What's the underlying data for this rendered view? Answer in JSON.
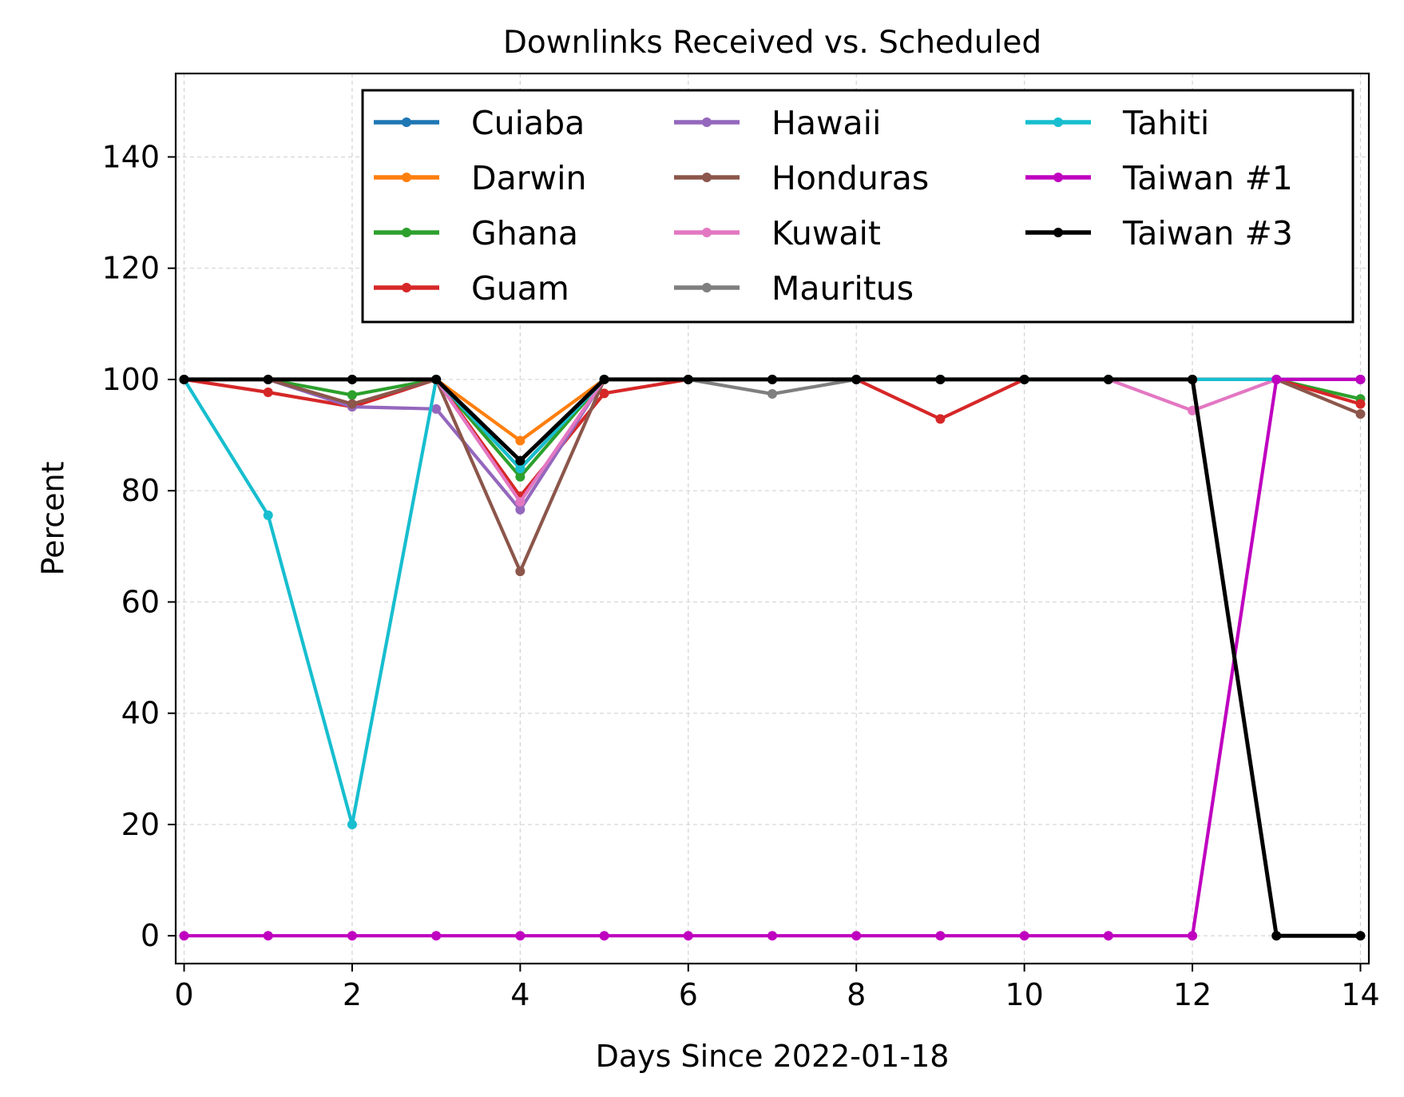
{
  "chart_data": {
    "type": "line",
    "title": "Downlinks Received vs. Scheduled",
    "xlabel": "Days Since 2022-01-18",
    "ylabel": "Percent",
    "xlim": [
      -0.1,
      14.1
    ],
    "ylim": [
      -5,
      155
    ],
    "xticks": [
      0,
      2,
      4,
      6,
      8,
      10,
      12,
      14
    ],
    "yticks": [
      0,
      20,
      40,
      60,
      80,
      100,
      120,
      140
    ],
    "grid": true,
    "legend_position": "upper-right",
    "legend_columns": 3,
    "x": [
      0,
      1,
      2,
      3,
      4,
      5,
      6,
      7,
      8,
      9,
      10,
      11,
      12,
      13,
      14
    ],
    "series": [
      {
        "name": "Cuiaba",
        "color": "#1f77b4",
        "values": [
          100,
          100,
          100,
          100,
          84,
          100,
          100,
          100,
          100,
          100,
          100,
          100,
          100,
          100,
          100
        ]
      },
      {
        "name": "Darwin",
        "color": "#ff7f0e",
        "values": [
          100,
          100,
          100,
          100,
          89,
          100,
          100,
          100,
          100,
          100,
          100,
          100,
          100,
          100,
          100
        ]
      },
      {
        "name": "Ghana",
        "color": "#2ca02c",
        "values": [
          100,
          100,
          97.2,
          100,
          82.5,
          100,
          100,
          100,
          100,
          100,
          100,
          100,
          100,
          100,
          96.5
        ]
      },
      {
        "name": "Guam",
        "color": "#d62728",
        "values": [
          100,
          97.7,
          95.1,
          100,
          79,
          97.5,
          100,
          100,
          100,
          92.9,
          100,
          100,
          100,
          100,
          95.6
        ]
      },
      {
        "name": "Hawaii",
        "color": "#9467bd",
        "values": [
          100,
          100,
          95.1,
          94.7,
          76.6,
          100,
          100,
          100,
          100,
          100,
          100,
          100,
          100,
          100,
          100
        ]
      },
      {
        "name": "Honduras",
        "color": "#8c564b",
        "values": [
          100,
          100,
          95.6,
          100,
          65.5,
          100,
          100,
          100,
          100,
          100,
          100,
          100,
          100,
          100,
          93.8
        ]
      },
      {
        "name": "Kuwait",
        "color": "#e377c2",
        "values": [
          100,
          100,
          100,
          100,
          78,
          100,
          100,
          100,
          100,
          100,
          100,
          100,
          94.4,
          100,
          100
        ]
      },
      {
        "name": "Mauritus",
        "color": "#7f7f7f",
        "values": [
          100,
          100,
          100,
          100,
          84,
          100,
          100,
          97.4,
          100,
          100,
          100,
          100,
          100,
          100,
          100
        ]
      },
      {
        "name": "Tahiti",
        "color": "#17becf",
        "values": [
          100,
          75.6,
          20,
          100,
          84,
          100,
          100,
          100,
          100,
          100,
          100,
          100,
          100,
          100,
          100
        ]
      },
      {
        "name": "Taiwan #1",
        "color": "#bf00bf",
        "values": [
          0,
          0,
          0,
          0,
          0,
          0,
          0,
          0,
          0,
          0,
          0,
          0,
          0,
          100,
          100
        ]
      },
      {
        "name": "Taiwan #3",
        "color": "#000000",
        "values": [
          100,
          100,
          100,
          100,
          85.4,
          100,
          100,
          100,
          100,
          100,
          100,
          100,
          100,
          0,
          0
        ]
      }
    ]
  }
}
